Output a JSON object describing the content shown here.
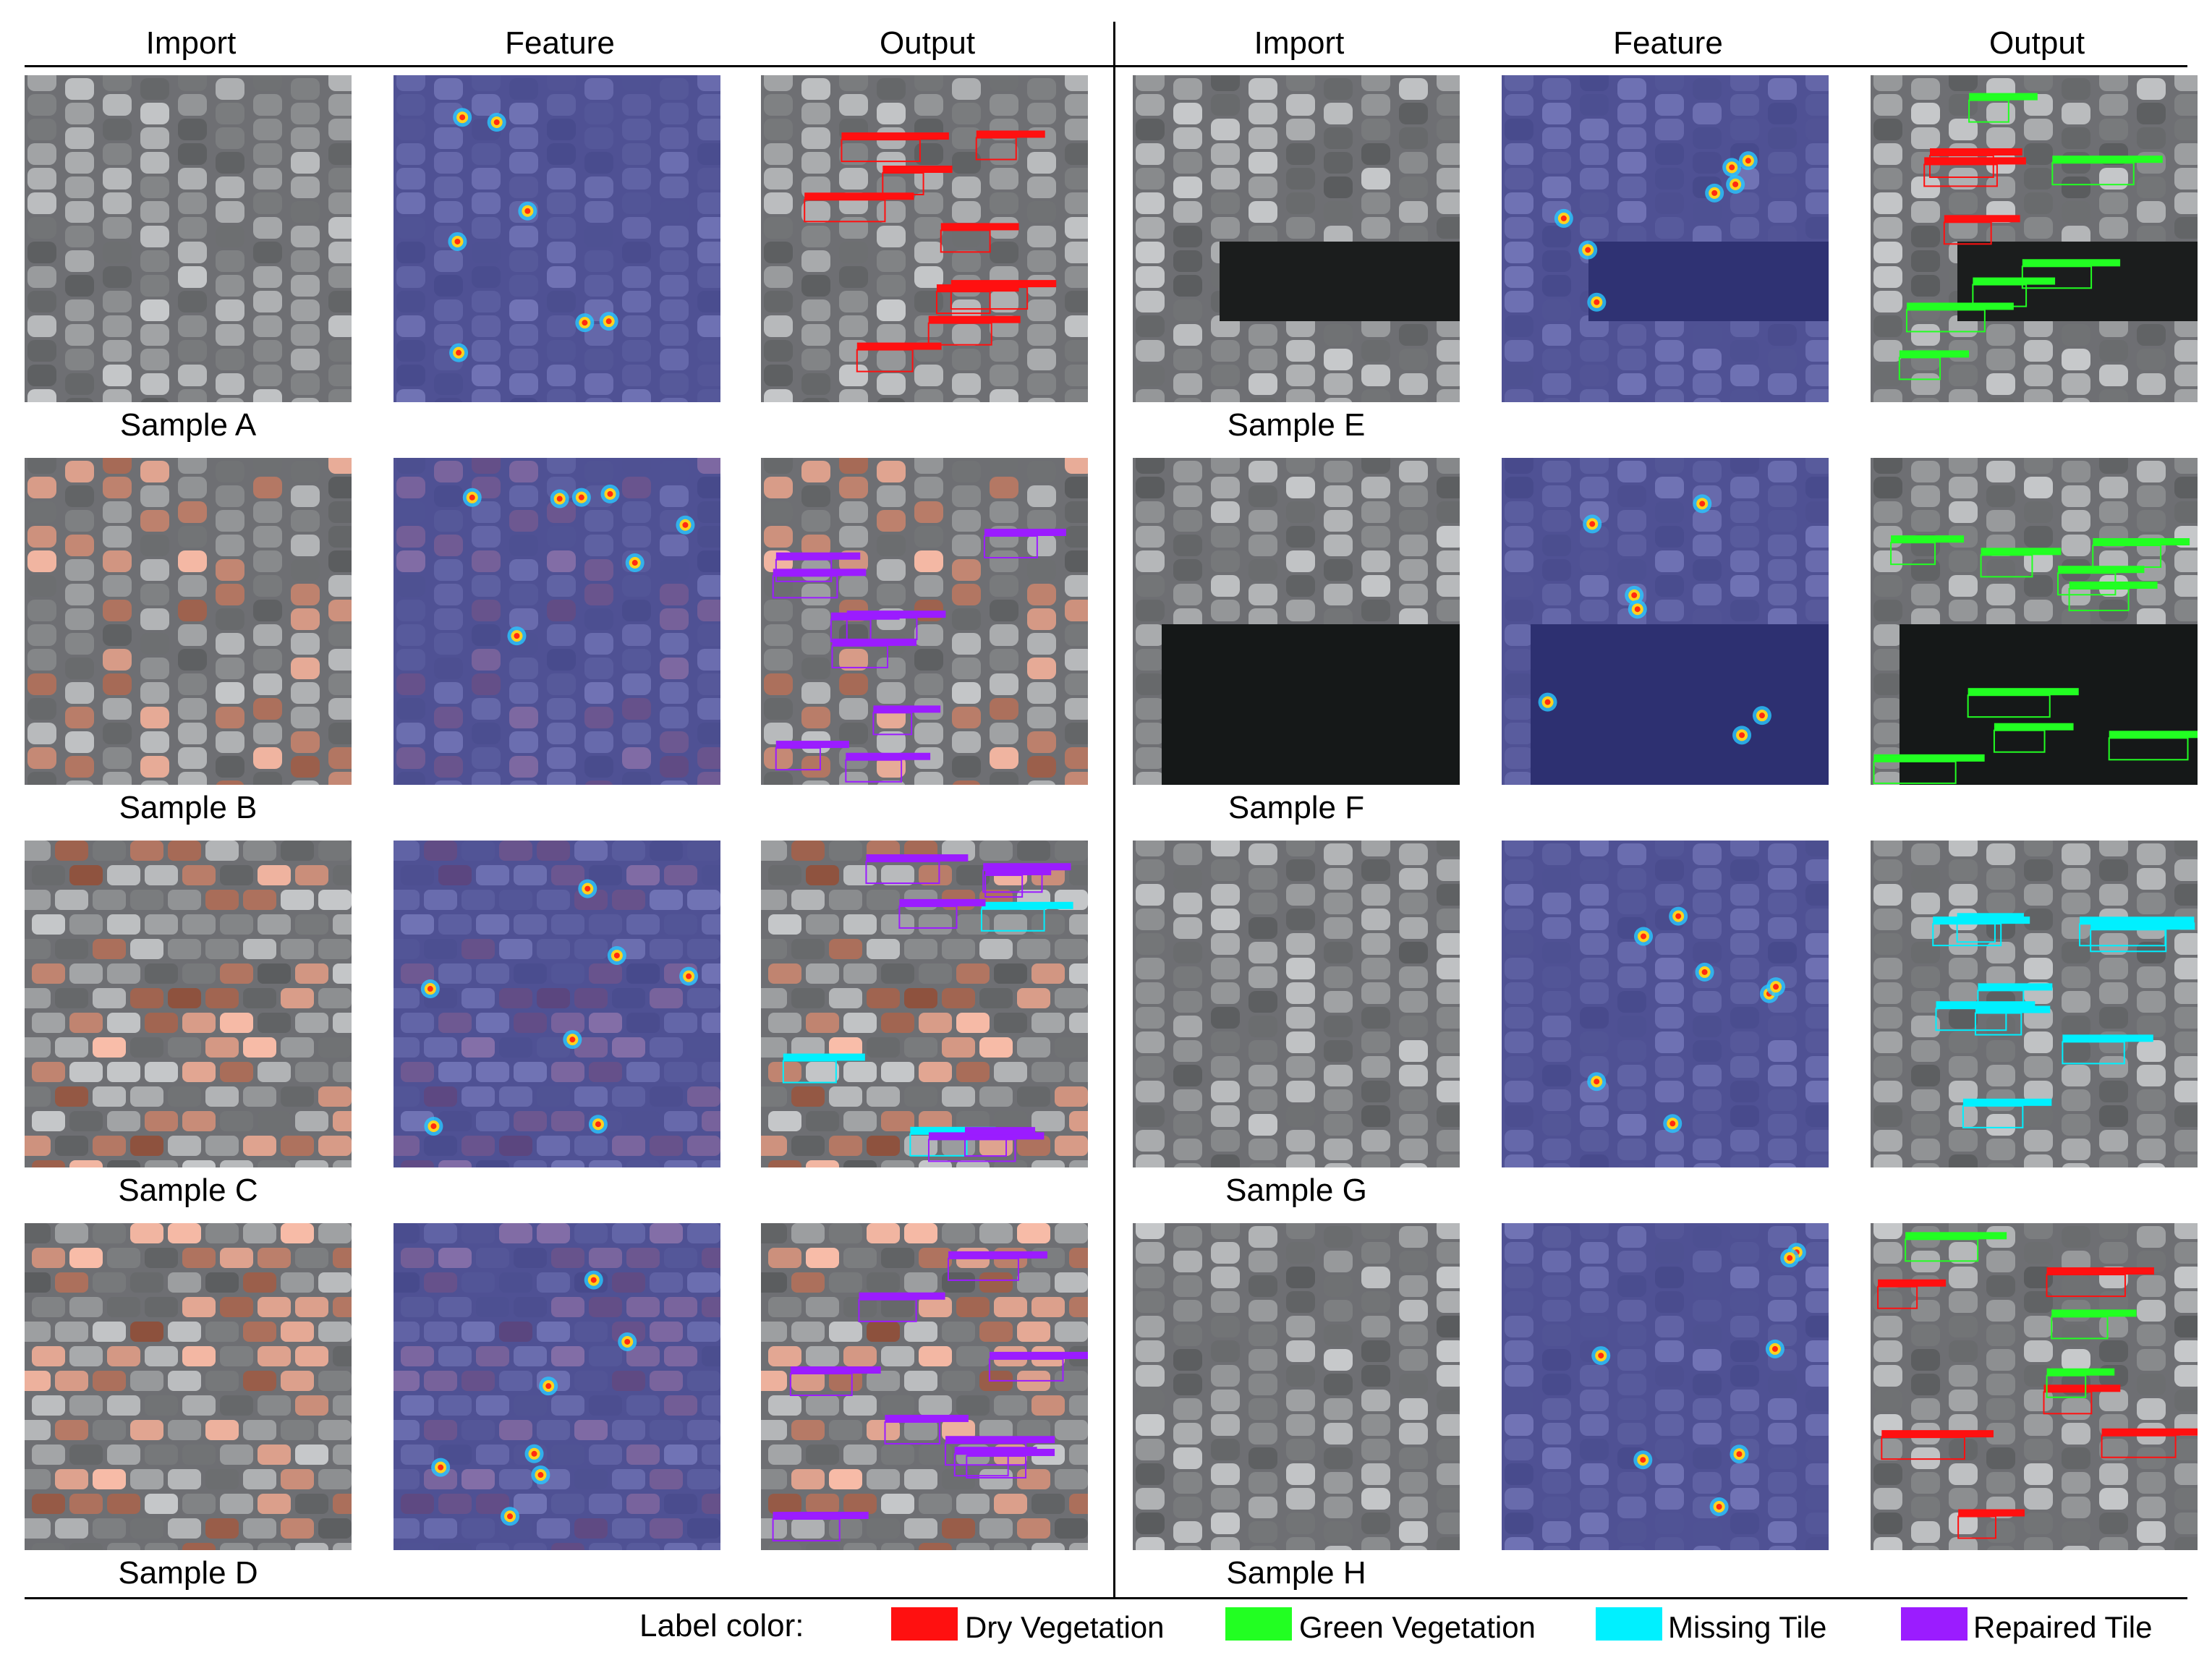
{
  "headers": {
    "left": [
      "Import",
      "Feature",
      "Output"
    ],
    "right": [
      "Import",
      "Feature",
      "Output"
    ]
  },
  "samples": [
    "Sample A",
    "Sample B",
    "Sample C",
    "Sample D",
    "Sample E",
    "Sample F",
    "Sample G",
    "Sample H"
  ],
  "legend": {
    "title": "Label color:",
    "items": [
      {
        "label": "Dry Vegetation",
        "color": "#ff1010"
      },
      {
        "label": "Green Vegetation",
        "color": "#22ff22"
      },
      {
        "label": "Missing Tile",
        "color": "#00f0ff"
      },
      {
        "label": "Repaired Tile",
        "color": "#9b1cff"
      }
    ]
  },
  "colors": {
    "feature_overlay": "#3b3fa8",
    "tile_dark": "#5a5c62",
    "tile_light": "#b8b6b2"
  }
}
